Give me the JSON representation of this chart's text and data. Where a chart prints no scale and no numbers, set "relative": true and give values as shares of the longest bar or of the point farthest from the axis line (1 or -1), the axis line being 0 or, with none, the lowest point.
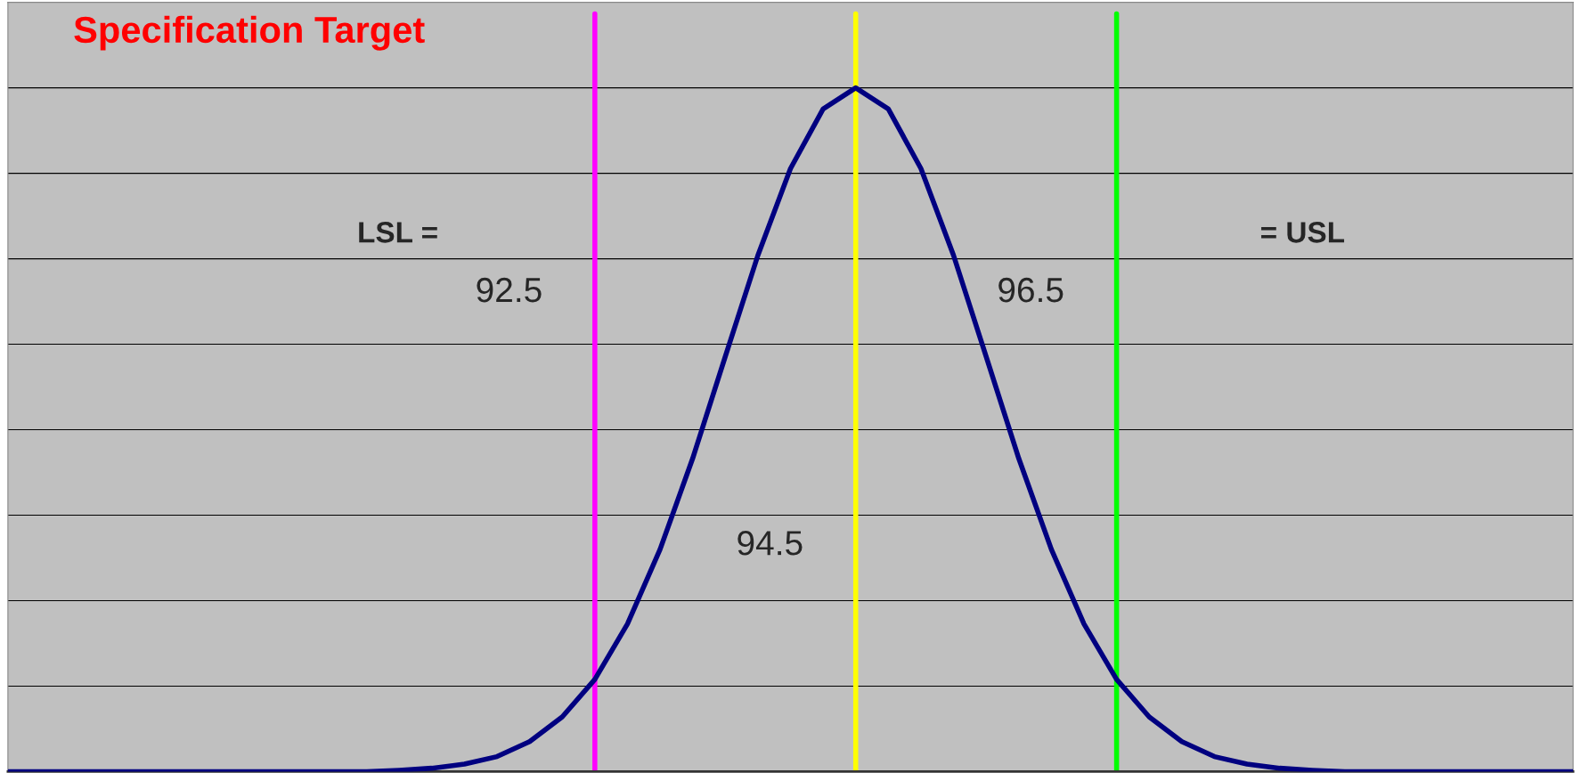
{
  "chart_data": {
    "type": "line",
    "title": "Specification Target",
    "relative": true,
    "categories": [
      null,
      null,
      null,
      null,
      null,
      null,
      null,
      null,
      null,
      null,
      null,
      null,
      null,
      null,
      null,
      null,
      null,
      null,
      null,
      null,
      null,
      null,
      null,
      null,
      null,
      null,
      null,
      null,
      null,
      null,
      null,
      null,
      null,
      null,
      null,
      null,
      null,
      null,
      null,
      null,
      null,
      null,
      null,
      null,
      null,
      null,
      null,
      null,
      null
    ],
    "series": [
      {
        "color": "#000080",
        "values": [
          0,
          0,
          0,
          0,
          0,
          0,
          0,
          0,
          0,
          0,
          0,
          0,
          0.002,
          0.005,
          0.011,
          0.022,
          0.044,
          0.08,
          0.135,
          0.216,
          0.325,
          0.458,
          0.607,
          0.755,
          0.882,
          0.969,
          1,
          0.969,
          0.882,
          0.755,
          0.607,
          0.458,
          0.325,
          0.216,
          0.135,
          0.08,
          0.044,
          0.022,
          0.011,
          0.005,
          0.002,
          0,
          0,
          0,
          0,
          0,
          0,
          0,
          0
        ]
      }
    ],
    "grid": "y",
    "marker": "none",
    "line_style": "solid",
    "annotations": [
      "LSL =",
      "= USL",
      "92.5",
      "94.5",
      "96.5"
    ]
  }
}
